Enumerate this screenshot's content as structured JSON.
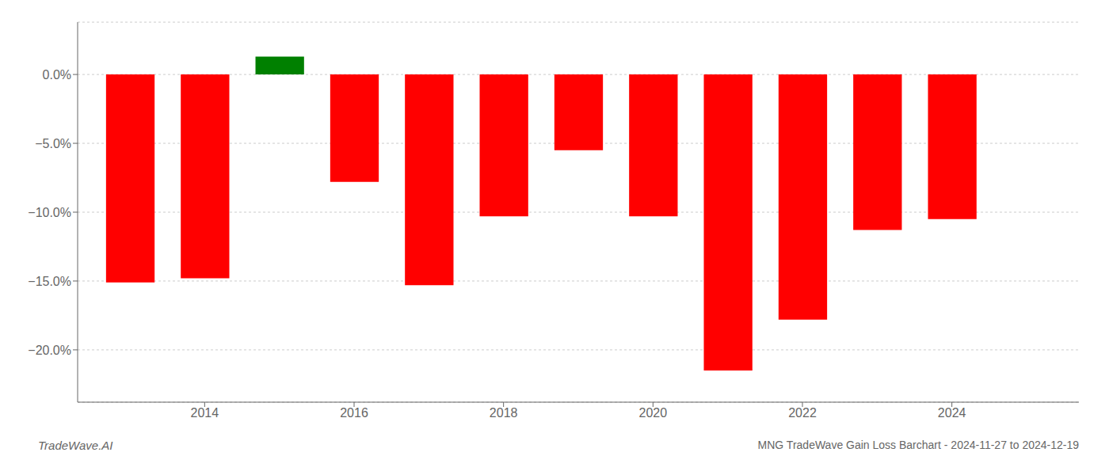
{
  "chart_data": {
    "type": "bar",
    "x": [
      2013,
      2014,
      2015,
      2016,
      2017,
      2018,
      2019,
      2020,
      2021,
      2022,
      2023,
      2024
    ],
    "values": [
      -0.151,
      -0.148,
      0.013,
      -0.078,
      -0.153,
      -0.103,
      -0.055,
      -0.103,
      -0.215,
      -0.178,
      -0.113,
      -0.105
    ],
    "colors": [
      "#ff0000",
      "#ff0000",
      "#008000",
      "#ff0000",
      "#ff0000",
      "#ff0000",
      "#ff0000",
      "#ff0000",
      "#ff0000",
      "#ff0000",
      "#ff0000",
      "#ff0000"
    ],
    "xlim": [
      2012.3,
      2025.7
    ],
    "xticks": [
      2014,
      2016,
      2018,
      2020,
      2022,
      2024
    ],
    "ylim": [
      -0.238,
      0.038
    ],
    "yticks": [
      {
        "value": 0.0,
        "label": "0.0%"
      },
      {
        "value": -0.05,
        "label": "−5.0%"
      },
      {
        "value": -0.1,
        "label": "−10.0%"
      },
      {
        "value": -0.15,
        "label": "−15.0%"
      },
      {
        "value": -0.2,
        "label": "−20.0%"
      }
    ],
    "grid": true,
    "annotations": [
      "TradeWave.AI",
      "MNG TradeWave Gain Loss Barchart - 2024-11-27 to 2024-12-19"
    ]
  }
}
